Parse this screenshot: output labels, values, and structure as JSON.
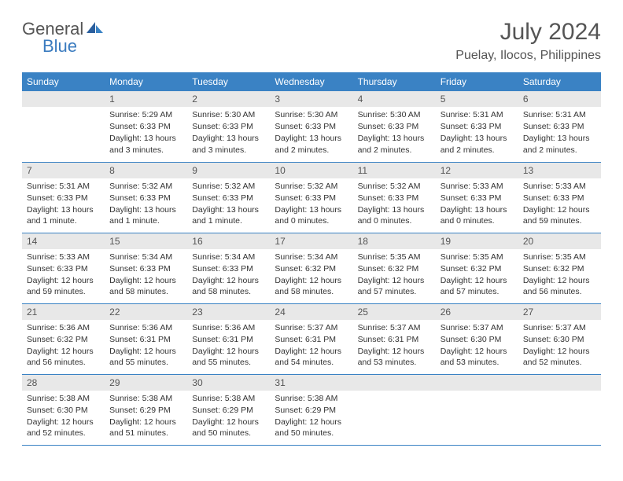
{
  "logo": {
    "general": "General",
    "blue": "Blue"
  },
  "title": {
    "month": "July 2024",
    "location": "Puelay, Ilocos, Philippines"
  },
  "colors": {
    "header_bg": "#3a82c4",
    "header_text": "#ffffff",
    "daynum_bg": "#e8e8e8",
    "border": "#3a82c4",
    "logo_general": "#555555",
    "logo_blue": "#3a7bbf"
  },
  "weekdays": [
    "Sunday",
    "Monday",
    "Tuesday",
    "Wednesday",
    "Thursday",
    "Friday",
    "Saturday"
  ],
  "weeks": [
    [
      null,
      {
        "n": "1",
        "sr": "Sunrise: 5:29 AM",
        "ss": "Sunset: 6:33 PM",
        "dl": "Daylight: 13 hours and 3 minutes."
      },
      {
        "n": "2",
        "sr": "Sunrise: 5:30 AM",
        "ss": "Sunset: 6:33 PM",
        "dl": "Daylight: 13 hours and 3 minutes."
      },
      {
        "n": "3",
        "sr": "Sunrise: 5:30 AM",
        "ss": "Sunset: 6:33 PM",
        "dl": "Daylight: 13 hours and 2 minutes."
      },
      {
        "n": "4",
        "sr": "Sunrise: 5:30 AM",
        "ss": "Sunset: 6:33 PM",
        "dl": "Daylight: 13 hours and 2 minutes."
      },
      {
        "n": "5",
        "sr": "Sunrise: 5:31 AM",
        "ss": "Sunset: 6:33 PM",
        "dl": "Daylight: 13 hours and 2 minutes."
      },
      {
        "n": "6",
        "sr": "Sunrise: 5:31 AM",
        "ss": "Sunset: 6:33 PM",
        "dl": "Daylight: 13 hours and 2 minutes."
      }
    ],
    [
      {
        "n": "7",
        "sr": "Sunrise: 5:31 AM",
        "ss": "Sunset: 6:33 PM",
        "dl": "Daylight: 13 hours and 1 minute."
      },
      {
        "n": "8",
        "sr": "Sunrise: 5:32 AM",
        "ss": "Sunset: 6:33 PM",
        "dl": "Daylight: 13 hours and 1 minute."
      },
      {
        "n": "9",
        "sr": "Sunrise: 5:32 AM",
        "ss": "Sunset: 6:33 PM",
        "dl": "Daylight: 13 hours and 1 minute."
      },
      {
        "n": "10",
        "sr": "Sunrise: 5:32 AM",
        "ss": "Sunset: 6:33 PM",
        "dl": "Daylight: 13 hours and 0 minutes."
      },
      {
        "n": "11",
        "sr": "Sunrise: 5:32 AM",
        "ss": "Sunset: 6:33 PM",
        "dl": "Daylight: 13 hours and 0 minutes."
      },
      {
        "n": "12",
        "sr": "Sunrise: 5:33 AM",
        "ss": "Sunset: 6:33 PM",
        "dl": "Daylight: 13 hours and 0 minutes."
      },
      {
        "n": "13",
        "sr": "Sunrise: 5:33 AM",
        "ss": "Sunset: 6:33 PM",
        "dl": "Daylight: 12 hours and 59 minutes."
      }
    ],
    [
      {
        "n": "14",
        "sr": "Sunrise: 5:33 AM",
        "ss": "Sunset: 6:33 PM",
        "dl": "Daylight: 12 hours and 59 minutes."
      },
      {
        "n": "15",
        "sr": "Sunrise: 5:34 AM",
        "ss": "Sunset: 6:33 PM",
        "dl": "Daylight: 12 hours and 58 minutes."
      },
      {
        "n": "16",
        "sr": "Sunrise: 5:34 AM",
        "ss": "Sunset: 6:33 PM",
        "dl": "Daylight: 12 hours and 58 minutes."
      },
      {
        "n": "17",
        "sr": "Sunrise: 5:34 AM",
        "ss": "Sunset: 6:32 PM",
        "dl": "Daylight: 12 hours and 58 minutes."
      },
      {
        "n": "18",
        "sr": "Sunrise: 5:35 AM",
        "ss": "Sunset: 6:32 PM",
        "dl": "Daylight: 12 hours and 57 minutes."
      },
      {
        "n": "19",
        "sr": "Sunrise: 5:35 AM",
        "ss": "Sunset: 6:32 PM",
        "dl": "Daylight: 12 hours and 57 minutes."
      },
      {
        "n": "20",
        "sr": "Sunrise: 5:35 AM",
        "ss": "Sunset: 6:32 PM",
        "dl": "Daylight: 12 hours and 56 minutes."
      }
    ],
    [
      {
        "n": "21",
        "sr": "Sunrise: 5:36 AM",
        "ss": "Sunset: 6:32 PM",
        "dl": "Daylight: 12 hours and 56 minutes."
      },
      {
        "n": "22",
        "sr": "Sunrise: 5:36 AM",
        "ss": "Sunset: 6:31 PM",
        "dl": "Daylight: 12 hours and 55 minutes."
      },
      {
        "n": "23",
        "sr": "Sunrise: 5:36 AM",
        "ss": "Sunset: 6:31 PM",
        "dl": "Daylight: 12 hours and 55 minutes."
      },
      {
        "n": "24",
        "sr": "Sunrise: 5:37 AM",
        "ss": "Sunset: 6:31 PM",
        "dl": "Daylight: 12 hours and 54 minutes."
      },
      {
        "n": "25",
        "sr": "Sunrise: 5:37 AM",
        "ss": "Sunset: 6:31 PM",
        "dl": "Daylight: 12 hours and 53 minutes."
      },
      {
        "n": "26",
        "sr": "Sunrise: 5:37 AM",
        "ss": "Sunset: 6:30 PM",
        "dl": "Daylight: 12 hours and 53 minutes."
      },
      {
        "n": "27",
        "sr": "Sunrise: 5:37 AM",
        "ss": "Sunset: 6:30 PM",
        "dl": "Daylight: 12 hours and 52 minutes."
      }
    ],
    [
      {
        "n": "28",
        "sr": "Sunrise: 5:38 AM",
        "ss": "Sunset: 6:30 PM",
        "dl": "Daylight: 12 hours and 52 minutes."
      },
      {
        "n": "29",
        "sr": "Sunrise: 5:38 AM",
        "ss": "Sunset: 6:29 PM",
        "dl": "Daylight: 12 hours and 51 minutes."
      },
      {
        "n": "30",
        "sr": "Sunrise: 5:38 AM",
        "ss": "Sunset: 6:29 PM",
        "dl": "Daylight: 12 hours and 50 minutes."
      },
      {
        "n": "31",
        "sr": "Sunrise: 5:38 AM",
        "ss": "Sunset: 6:29 PM",
        "dl": "Daylight: 12 hours and 50 minutes."
      },
      null,
      null,
      null
    ]
  ]
}
